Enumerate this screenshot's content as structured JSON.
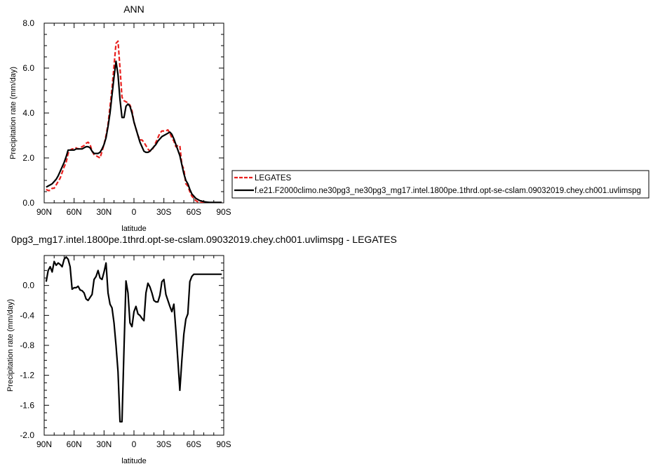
{
  "chart_data": [
    {
      "type": "line",
      "title": "ANN",
      "xlabel": "latitude",
      "ylabel": "Precipitation rate (mm/day)",
      "xlim": [
        90,
        -90
      ],
      "ylim": [
        0,
        8
      ],
      "xticks": [
        90,
        60,
        30,
        0,
        -30,
        -60,
        -90
      ],
      "xtick_labels": [
        "90N",
        "60N",
        "30N",
        "0",
        "30S",
        "60S",
        "90S"
      ],
      "yticks": [
        0,
        2,
        4,
        6,
        8
      ],
      "ytick_labels": [
        "0.0",
        "2.0",
        "4.0",
        "6.0",
        "8.0"
      ],
      "grid": false,
      "legend_position": "right",
      "series": [
        {
          "name": "LEGATES",
          "color": "#e8201e",
          "style": "dashed",
          "x": [
            88,
            86,
            84,
            82,
            80,
            78,
            76,
            74,
            72,
            70,
            68,
            66,
            64,
            62,
            60,
            58,
            56,
            54,
            52,
            50,
            48,
            46,
            44,
            42,
            40,
            38,
            36,
            34,
            32,
            30,
            28,
            26,
            24,
            22,
            20,
            18,
            16,
            14,
            12,
            10,
            8,
            6,
            4,
            2,
            0,
            -2,
            -4,
            -6,
            -8,
            -10,
            -12,
            -14,
            -16,
            -18,
            -20,
            -22,
            -24,
            -26,
            -28,
            -30,
            -32,
            -34,
            -36,
            -38,
            -40,
            -42,
            -44,
            -46,
            -48,
            -50,
            -52,
            -54,
            -56,
            -58,
            -60,
            -62,
            -64,
            -66,
            -68,
            -70,
            -72,
            -74,
            -76,
            -78,
            -80,
            -82,
            -84,
            -86,
            -88
          ],
          "values": [
            0.6,
            0.55,
            0.55,
            0.65,
            0.65,
            0.8,
            0.95,
            1.1,
            1.35,
            1.6,
            1.8,
            2.2,
            2.35,
            2.4,
            2.4,
            2.45,
            2.4,
            2.45,
            2.5,
            2.55,
            2.65,
            2.7,
            2.6,
            2.3,
            2.15,
            2.1,
            2.05,
            2.0,
            2.3,
            2.6,
            3.0,
            3.5,
            4.3,
            5.1,
            6.1,
            7.1,
            7.2,
            6.0,
            4.7,
            4.55,
            4.5,
            4.45,
            4.35,
            4.1,
            3.6,
            3.3,
            3.0,
            2.8,
            2.8,
            2.7,
            2.55,
            2.4,
            2.3,
            2.35,
            2.5,
            2.7,
            2.9,
            3.1,
            3.2,
            3.2,
            3.2,
            3.25,
            3.1,
            2.9,
            2.75,
            2.5,
            2.55,
            2.55,
            1.7,
            1.5,
            0.85,
            0.75,
            0.5,
            0.3,
            0.2,
            0.1,
            0.05,
            0.02,
            0.01,
            0.01,
            0.0,
            0.0,
            0.0,
            0.0,
            0.0,
            0.0,
            0.0,
            0.0,
            0.0
          ]
        },
        {
          "name": "f.e21.F2000climo.ne30pg3_ne30pg3_mg17.intel.1800pe.1thrd.opt-se-cslam.09032019.chey.ch001.uvlimspg",
          "color": "#000000",
          "style": "solid",
          "x": [
            88,
            86,
            84,
            82,
            80,
            78,
            76,
            74,
            72,
            70,
            68,
            66,
            64,
            62,
            60,
            58,
            56,
            54,
            52,
            50,
            48,
            46,
            44,
            42,
            40,
            38,
            36,
            34,
            32,
            30,
            28,
            26,
            24,
            22,
            20,
            18,
            16,
            14,
            12,
            10,
            8,
            6,
            4,
            2,
            0,
            -2,
            -4,
            -6,
            -8,
            -10,
            -12,
            -14,
            -16,
            -18,
            -20,
            -22,
            -24,
            -26,
            -28,
            -30,
            -32,
            -34,
            -36,
            -38,
            -40,
            -42,
            -44,
            -46,
            -48,
            -50,
            -52,
            -54,
            -56,
            -58,
            -60,
            -62,
            -64,
            -66,
            -68,
            -70,
            -72,
            -74,
            -76,
            -78,
            -80,
            -82,
            -84,
            -86,
            -88
          ],
          "values": [
            0.7,
            0.75,
            0.8,
            0.85,
            0.95,
            1.05,
            1.2,
            1.4,
            1.6,
            1.8,
            2.05,
            2.35,
            2.35,
            2.35,
            2.35,
            2.4,
            2.4,
            2.4,
            2.4,
            2.45,
            2.5,
            2.5,
            2.45,
            2.3,
            2.2,
            2.2,
            2.2,
            2.25,
            2.4,
            2.6,
            2.9,
            3.4,
            4.0,
            4.8,
            5.6,
            6.3,
            5.7,
            4.6,
            3.8,
            3.8,
            4.3,
            4.4,
            4.3,
            4.0,
            3.6,
            3.3,
            3.0,
            2.7,
            2.5,
            2.3,
            2.25,
            2.25,
            2.3,
            2.4,
            2.5,
            2.6,
            2.75,
            2.85,
            2.95,
            3.0,
            3.05,
            3.1,
            3.15,
            3.05,
            2.85,
            2.6,
            2.35,
            2.1,
            1.7,
            1.3,
            1.0,
            0.85,
            0.6,
            0.4,
            0.3,
            0.2,
            0.15,
            0.1,
            0.08,
            0.05,
            0.04,
            0.03,
            0.02,
            0.02,
            0.02,
            0.02,
            0.02,
            0.02,
            0.02
          ]
        }
      ]
    },
    {
      "type": "line",
      "title": "0pg3_mg17.intel.1800pe.1thrd.opt-se-cslam.09032019.chey.ch001.uvlimspg - LEGATES",
      "xlabel": "latitude",
      "ylabel": "Precipitation rate (mm/day)",
      "xlim": [
        90,
        -90
      ],
      "ylim": [
        -2.0,
        0.4
      ],
      "xticks": [
        90,
        60,
        30,
        0,
        -30,
        -60,
        -90
      ],
      "xtick_labels": [
        "90N",
        "60N",
        "30N",
        "0",
        "30S",
        "60S",
        "90S"
      ],
      "yticks": [
        0.0,
        -0.4,
        -0.8,
        -1.2,
        -1.6,
        -2.0
      ],
      "ytick_labels": [
        "0.0",
        "-0.4",
        "-0.8",
        "-1.2",
        "-1.6",
        "-2.0"
      ],
      "grid": false,
      "series": [
        {
          "color": "#000000",
          "style": "solid",
          "x": [
            88,
            86,
            84,
            82,
            80,
            78,
            76,
            74,
            72,
            70,
            68,
            66,
            64,
            62,
            60,
            58,
            56,
            54,
            52,
            50,
            48,
            46,
            44,
            42,
            40,
            38,
            36,
            34,
            32,
            30,
            28,
            26,
            24,
            22,
            20,
            18,
            16,
            14,
            12,
            10,
            8,
            6,
            4,
            2,
            0,
            -2,
            -4,
            -6,
            -8,
            -10,
            -12,
            -14,
            -16,
            -18,
            -20,
            -22,
            -24,
            -26,
            -28,
            -30,
            -32,
            -34,
            -36,
            -38,
            -40,
            -42,
            -44,
            -46,
            -48,
            -50,
            -52,
            -54,
            -56,
            -58,
            -60,
            -62,
            -64,
            -66,
            -68,
            -70,
            -72,
            -74,
            -76,
            -78,
            -80,
            -82,
            -84,
            -86,
            -88
          ],
          "values": [
            0.05,
            0.2,
            0.25,
            0.18,
            0.32,
            0.27,
            0.3,
            0.28,
            0.25,
            0.35,
            0.38,
            0.35,
            0.25,
            -0.05,
            -0.03,
            -0.03,
            -0.01,
            -0.06,
            -0.07,
            -0.1,
            -0.18,
            -0.2,
            -0.16,
            -0.12,
            0.08,
            0.12,
            0.2,
            0.1,
            0.08,
            0.18,
            0.3,
            -0.1,
            -0.25,
            -0.3,
            -0.5,
            -0.8,
            -1.15,
            -1.82,
            -1.82,
            -0.85,
            0.06,
            -0.1,
            -0.5,
            -0.55,
            -0.35,
            -0.28,
            -0.38,
            -0.4,
            -0.44,
            -0.47,
            -0.1,
            0.03,
            -0.02,
            -0.1,
            -0.2,
            -0.22,
            -0.22,
            -0.13,
            0.05,
            0.08,
            -0.12,
            -0.2,
            -0.28,
            -0.35,
            -0.25,
            -0.6,
            -1.0,
            -1.4,
            -1.0,
            -0.65,
            -0.45,
            -0.38,
            0.05,
            0.12,
            0.15,
            0.15,
            0.15,
            0.15,
            0.15,
            0.15,
            0.15,
            0.15,
            0.15,
            0.15,
            0.15,
            0.15,
            0.15,
            0.15,
            0.15
          ]
        }
      ]
    }
  ]
}
